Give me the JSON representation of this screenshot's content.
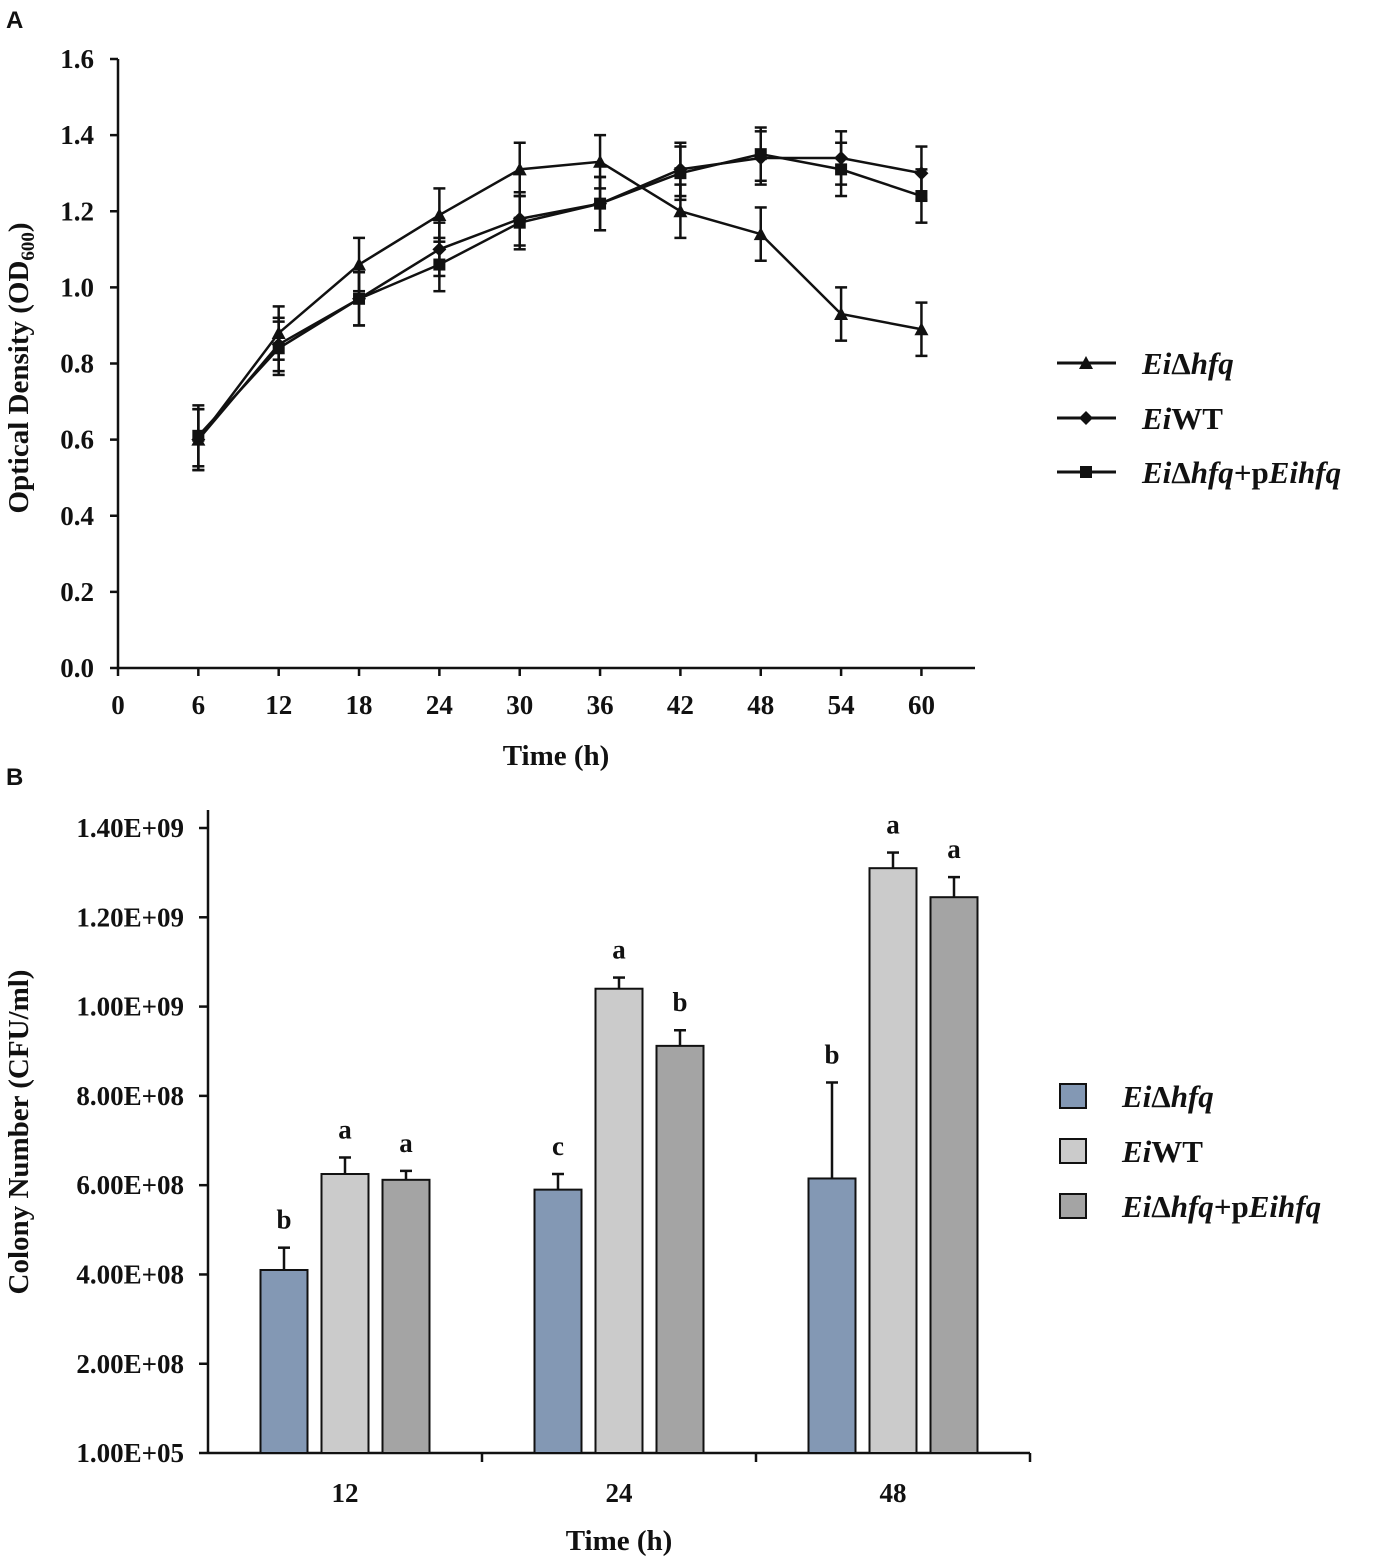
{
  "figure": {
    "panels": [
      {
        "label": "A"
      },
      {
        "label": "B"
      }
    ]
  },
  "chart_data": [
    {
      "type": "line",
      "panel": "A",
      "title": "",
      "xlabel": "Time (h)",
      "ylabel": "Optical Density (OD",
      "ylabel_sub": "600",
      "ylabel_end": ")",
      "xlim": [
        0,
        64
      ],
      "ylim": [
        0,
        1.6
      ],
      "x_ticks": [
        0,
        6,
        12,
        18,
        24,
        30,
        36,
        42,
        48,
        54,
        60
      ],
      "x_tick_labels": [
        "0",
        "6",
        "12",
        "18",
        "24",
        "30",
        "36",
        "42",
        "48",
        "54",
        "60"
      ],
      "y_ticks": [
        0,
        0.2,
        0.4,
        0.6,
        0.8,
        1.0,
        1.2,
        1.4,
        1.6
      ],
      "y_tick_labels": [
        "0.0",
        "0.2",
        "0.4",
        "0.6",
        "0.8",
        "1.0",
        "1.2",
        "1.4",
        "1.6"
      ],
      "x": [
        6,
        12,
        18,
        24,
        30,
        36,
        42,
        48,
        54,
        60
      ],
      "legend_position": "right",
      "series": [
        {
          "name": "EiΔhfq",
          "name_parts": [
            {
              "t": "Ei",
              "i": true
            },
            {
              "t": "Δ",
              "i": false
            },
            {
              "t": "hfq",
              "i": true
            }
          ],
          "marker": "triangle",
          "values": [
            0.6,
            0.88,
            1.06,
            1.19,
            1.31,
            1.33,
            1.2,
            1.14,
            0.93,
            0.89
          ],
          "errors": [
            0.08,
            0.07,
            0.07,
            0.07,
            0.07,
            0.07,
            0.07,
            0.07,
            0.07,
            0.07
          ]
        },
        {
          "name": "EiWT",
          "name_parts": [
            {
              "t": "Ei",
              "i": true
            },
            {
              "t": "WT",
              "i": false
            }
          ],
          "marker": "diamond",
          "values": [
            0.6,
            0.85,
            0.97,
            1.1,
            1.18,
            1.22,
            1.31,
            1.34,
            1.34,
            1.3
          ],
          "errors": [
            0.08,
            0.07,
            0.07,
            0.07,
            0.07,
            0.07,
            0.07,
            0.07,
            0.07,
            0.07
          ]
        },
        {
          "name": "EiΔhfq+pEihfq",
          "name_parts": [
            {
              "t": "Ei",
              "i": true
            },
            {
              "t": "Δ",
              "i": false
            },
            {
              "t": "hfq",
              "i": true
            },
            {
              "t": "+p",
              "i": false
            },
            {
              "t": "Eihfq",
              "i": true
            }
          ],
          "marker": "square",
          "values": [
            0.61,
            0.84,
            0.97,
            1.06,
            1.17,
            1.22,
            1.3,
            1.35,
            1.31,
            1.24
          ],
          "errors": [
            0.08,
            0.07,
            0.07,
            0.07,
            0.07,
            0.07,
            0.07,
            0.07,
            0.07,
            0.07
          ]
        }
      ]
    },
    {
      "type": "bar",
      "panel": "B",
      "title": "",
      "xlabel": "Time (h)",
      "ylabel": "Colony Number (CFU/ml)",
      "categories": [
        "12",
        "24",
        "48"
      ],
      "ylim": [
        100000,
        1400000000
      ],
      "y_ticks": [
        100000,
        200000000,
        400000000,
        600000000,
        800000000,
        1000000000,
        1200000000,
        1400000000
      ],
      "y_tick_labels": [
        "1.00E+05",
        "2.00E+08",
        "4.00E+08",
        "6.00E+08",
        "8.00E+08",
        "1.00E+09",
        "1.20E+09",
        "1.40E+09"
      ],
      "legend_position": "right",
      "series": [
        {
          "name": "EiΔhfq",
          "name_parts": [
            {
              "t": "Ei",
              "i": true
            },
            {
              "t": "Δ",
              "i": false
            },
            {
              "t": "hfq",
              "i": true
            }
          ],
          "color": "#8398b4",
          "values": [
            410000000,
            590000000,
            615000000
          ],
          "errors": [
            50000000,
            35000000,
            215000000
          ],
          "labels": [
            "b",
            "c",
            "b"
          ]
        },
        {
          "name": "EiWT",
          "name_parts": [
            {
              "t": "Ei",
              "i": true
            },
            {
              "t": "WT",
              "i": false
            }
          ],
          "color": "#cbcbcb",
          "values": [
            625000000,
            1040000000,
            1310000000
          ],
          "errors": [
            37000000,
            25000000,
            35000000
          ],
          "labels": [
            "a",
            "a",
            "a"
          ]
        },
        {
          "name": "EiΔhfq+pEihfq",
          "name_parts": [
            {
              "t": "Ei",
              "i": true
            },
            {
              "t": "Δ",
              "i": false
            },
            {
              "t": "hfq",
              "i": true
            },
            {
              "t": "+p",
              "i": false
            },
            {
              "t": "Eihfq",
              "i": true
            }
          ],
          "color": "#a4a4a4",
          "values": [
            612000000,
            912000000,
            1245000000
          ],
          "errors": [
            20000000,
            35000000,
            45000000
          ],
          "labels": [
            "a",
            "b",
            "a"
          ]
        }
      ]
    }
  ]
}
